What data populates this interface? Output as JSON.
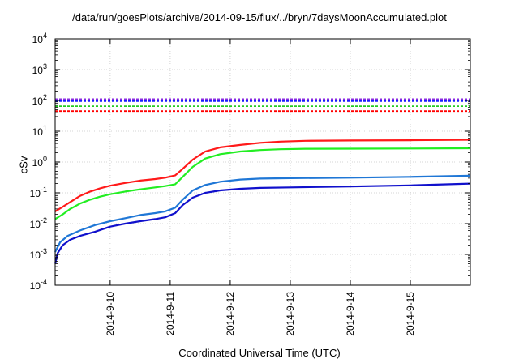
{
  "chart_data": {
    "type": "line",
    "title": "/data/run/goesPlots/archive/2014-09-15/flux/../bryn/7daysMoonAccumulated.plot",
    "xlabel": "Coordinated Universal Time (UTC)",
    "ylabel": "cSv",
    "y_scale": "log",
    "ylim": [
      0.0001,
      10000
    ],
    "xlim": [
      "2014-09-09 02:00",
      "2014-09-15 23:59"
    ],
    "x_ticks": [
      "2014-9-10",
      "2014-9-11",
      "2014-9-12",
      "2014-9-13",
      "2014-9-14",
      "2014-9-15"
    ],
    "y_ticks": [
      {
        "base": "10",
        "exp": "-4",
        "value": 0.0001
      },
      {
        "base": "10",
        "exp": "-3",
        "value": 0.001
      },
      {
        "base": "10",
        "exp": "-2",
        "value": 0.01
      },
      {
        "base": "10",
        "exp": "-1",
        "value": 0.1
      },
      {
        "base": "10",
        "exp": "0",
        "value": 1
      },
      {
        "base": "10",
        "exp": "1",
        "value": 10
      },
      {
        "base": "10",
        "exp": "2",
        "value": 100
      },
      {
        "base": "10",
        "exp": "3",
        "value": 1000
      },
      {
        "base": "10",
        "exp": "4",
        "value": 10000
      }
    ],
    "grid": true,
    "reference_lines": [
      {
        "color": "#8a2be2",
        "value": 110
      },
      {
        "color": "#1a1aff",
        "value": 95
      },
      {
        "color": "#22cc22",
        "value": 65
      },
      {
        "color": "#ff0000",
        "value": 45
      }
    ],
    "series": [
      {
        "color": "#ff1a1a",
        "x": [
          "2014-09-09 02:00",
          "2014-09-09 05:00",
          "2014-09-09 08:00",
          "2014-09-09 12:00",
          "2014-09-09 16:00",
          "2014-09-09 20:00",
          "2014-09-10 00:00",
          "2014-09-10 06:00",
          "2014-09-10 12:00",
          "2014-09-10 18:00",
          "2014-09-10 22:00",
          "2014-09-11 02:00",
          "2014-09-11 05:00",
          "2014-09-11 09:00",
          "2014-09-11 14:00",
          "2014-09-11 20:00",
          "2014-09-12 04:00",
          "2014-09-12 12:00",
          "2014-09-12 20:00",
          "2014-09-13 06:00",
          "2014-09-14 00:00",
          "2014-09-15 00:00",
          "2014-09-15 23:59"
        ],
        "values": [
          0.025,
          0.035,
          0.05,
          0.08,
          0.11,
          0.14,
          0.17,
          0.21,
          0.25,
          0.28,
          0.31,
          0.37,
          0.6,
          1.2,
          2.2,
          3.0,
          3.6,
          4.2,
          4.6,
          4.9,
          5.0,
          5.1,
          5.3
        ]
      },
      {
        "color": "#22ee22",
        "x": [
          "2014-09-09 02:00",
          "2014-09-09 05:00",
          "2014-09-09 08:00",
          "2014-09-09 12:00",
          "2014-09-09 16:00",
          "2014-09-09 20:00",
          "2014-09-10 00:00",
          "2014-09-10 06:00",
          "2014-09-10 12:00",
          "2014-09-10 18:00",
          "2014-09-10 22:00",
          "2014-09-11 02:00",
          "2014-09-11 05:00",
          "2014-09-11 09:00",
          "2014-09-11 14:00",
          "2014-09-11 20:00",
          "2014-09-12 04:00",
          "2014-09-12 12:00",
          "2014-09-12 20:00",
          "2014-09-13 06:00",
          "2014-09-14 00:00",
          "2014-09-15 00:00",
          "2014-09-15 23:59"
        ],
        "values": [
          0.014,
          0.02,
          0.03,
          0.045,
          0.06,
          0.075,
          0.09,
          0.11,
          0.13,
          0.15,
          0.165,
          0.19,
          0.33,
          0.7,
          1.3,
          1.8,
          2.2,
          2.45,
          2.6,
          2.7,
          2.72,
          2.75,
          2.8
        ]
      },
      {
        "color": "#1f77d6",
        "x": [
          "2014-09-09 02:00",
          "2014-09-09 04:00",
          "2014-09-09 07:00",
          "2014-09-09 12:00",
          "2014-09-09 18:00",
          "2014-09-10 00:00",
          "2014-09-10 06:00",
          "2014-09-10 12:00",
          "2014-09-10 18:00",
          "2014-09-10 22:00",
          "2014-09-11 02:00",
          "2014-09-11 05:00",
          "2014-09-11 09:00",
          "2014-09-11 14:00",
          "2014-09-11 20:00",
          "2014-09-12 04:00",
          "2014-09-12 12:00",
          "2014-09-13 00:00",
          "2014-09-14 00:00",
          "2014-09-15 00:00",
          "2014-09-15 23:59"
        ],
        "values": [
          0.0012,
          0.0025,
          0.004,
          0.006,
          0.009,
          0.012,
          0.015,
          0.019,
          0.022,
          0.025,
          0.033,
          0.06,
          0.12,
          0.18,
          0.23,
          0.27,
          0.29,
          0.3,
          0.31,
          0.33,
          0.36
        ]
      },
      {
        "color": "#1010cc",
        "x": [
          "2014-09-09 02:00",
          "2014-09-09 03:00",
          "2014-09-09 05:00",
          "2014-09-09 08:00",
          "2014-09-09 12:00",
          "2014-09-09 18:00",
          "2014-09-10 00:00",
          "2014-09-10 06:00",
          "2014-09-10 12:00",
          "2014-09-10 18:00",
          "2014-09-10 22:00",
          "2014-09-11 02:00",
          "2014-09-11 05:00",
          "2014-09-11 09:00",
          "2014-09-11 14:00",
          "2014-09-11 20:00",
          "2014-09-12 04:00",
          "2014-09-12 12:00",
          "2014-09-13 00:00",
          "2014-09-14 00:00",
          "2014-09-15 00:00",
          "2014-09-15 23:59"
        ],
        "values": [
          0.0005,
          0.0011,
          0.002,
          0.003,
          0.004,
          0.0055,
          0.008,
          0.01,
          0.012,
          0.014,
          0.016,
          0.022,
          0.04,
          0.07,
          0.1,
          0.12,
          0.135,
          0.145,
          0.15,
          0.16,
          0.175,
          0.2
        ]
      }
    ]
  }
}
